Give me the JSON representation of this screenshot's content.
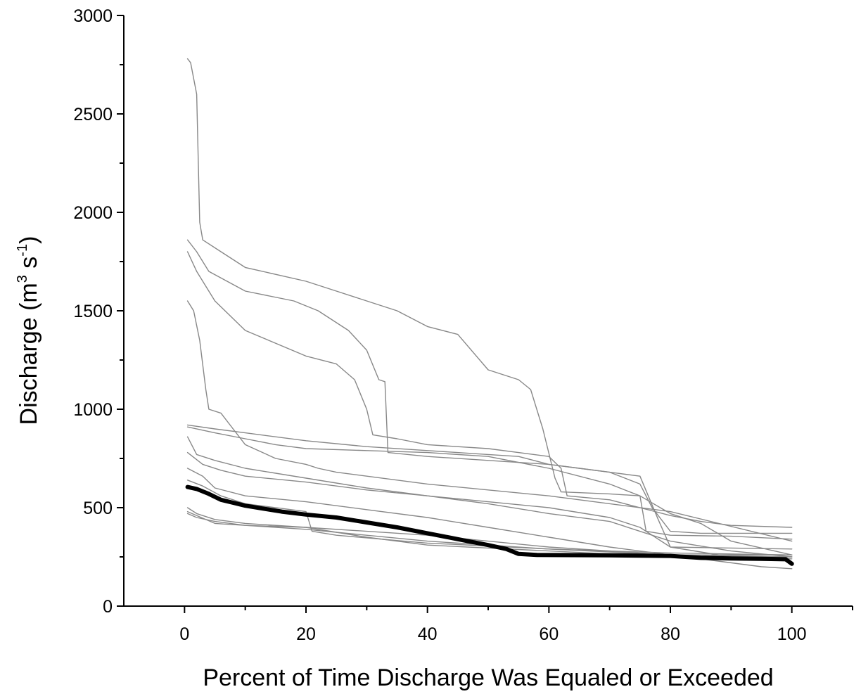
{
  "chart_data": {
    "type": "line",
    "xlabel": "Percent of Time Discharge Was Equaled or Exceeded",
    "ylabel_main": "Discharge (m",
    "ylabel_sup1": "3",
    "ylabel_mid": " s",
    "ylabel_sup2": "-1",
    "ylabel_end": ")",
    "xlim": [
      -10,
      110
    ],
    "ylim": [
      0,
      3000
    ],
    "xticks": [
      0,
      20,
      40,
      60,
      80,
      100
    ],
    "yticks": [
      0,
      500,
      1000,
      1500,
      2000,
      2500,
      3000
    ],
    "xtick_labels": [
      "0",
      "20",
      "40",
      "60",
      "80",
      "100"
    ],
    "ytick_labels": [
      "0",
      "500",
      "1000",
      "1500",
      "2000",
      "2500",
      "3000"
    ],
    "grid": false,
    "colors": {
      "gray": "#888888",
      "black": "#000000"
    },
    "series": [
      {
        "color": "gray",
        "points": [
          [
            0.5,
            2780
          ],
          [
            1,
            2760
          ],
          [
            2,
            2600
          ],
          [
            2.5,
            1950
          ],
          [
            3,
            1860
          ],
          [
            6,
            1800
          ],
          [
            10,
            1720
          ],
          [
            20,
            1650
          ],
          [
            25,
            1600
          ],
          [
            30,
            1550
          ],
          [
            35,
            1500
          ],
          [
            40,
            1420
          ],
          [
            45,
            1380
          ],
          [
            50,
            1200
          ],
          [
            55,
            1150
          ],
          [
            57,
            1100
          ],
          [
            59,
            900
          ],
          [
            61,
            650
          ],
          [
            62,
            580
          ],
          [
            70,
            570
          ],
          [
            75,
            560
          ],
          [
            76,
            380
          ],
          [
            80,
            360
          ],
          [
            90,
            355
          ],
          [
            100,
            340
          ]
        ]
      },
      {
        "color": "gray",
        "points": [
          [
            0.5,
            1860
          ],
          [
            2,
            1800
          ],
          [
            4,
            1700
          ],
          [
            10,
            1600
          ],
          [
            18,
            1550
          ],
          [
            22,
            1500
          ],
          [
            27,
            1400
          ],
          [
            30,
            1300
          ],
          [
            32,
            1150
          ],
          [
            33,
            1140
          ],
          [
            33.5,
            780
          ],
          [
            40,
            760
          ],
          [
            50,
            740
          ],
          [
            60,
            720
          ],
          [
            65,
            700
          ],
          [
            70,
            680
          ],
          [
            75,
            620
          ],
          [
            77,
            500
          ],
          [
            80,
            380
          ],
          [
            85,
            370
          ],
          [
            100,
            370
          ]
        ]
      },
      {
        "color": "gray",
        "points": [
          [
            0.5,
            1800
          ],
          [
            2,
            1700
          ],
          [
            5,
            1550
          ],
          [
            10,
            1400
          ],
          [
            20,
            1270
          ],
          [
            25,
            1230
          ],
          [
            28,
            1150
          ],
          [
            30,
            1000
          ],
          [
            31,
            870
          ],
          [
            35,
            850
          ],
          [
            40,
            820
          ],
          [
            50,
            800
          ],
          [
            60,
            760
          ],
          [
            62,
            700
          ],
          [
            63,
            560
          ],
          [
            70,
            540
          ],
          [
            75,
            500
          ],
          [
            80,
            460
          ],
          [
            85,
            430
          ],
          [
            90,
            410
          ],
          [
            100,
            400
          ]
        ]
      },
      {
        "color": "gray",
        "points": [
          [
            0.5,
            1550
          ],
          [
            1.5,
            1500
          ],
          [
            2.5,
            1350
          ],
          [
            3.5,
            1100
          ],
          [
            4,
            1000
          ],
          [
            6,
            980
          ],
          [
            8,
            900
          ],
          [
            10,
            820
          ],
          [
            15,
            750
          ],
          [
            20,
            720
          ],
          [
            22,
            700
          ],
          [
            25,
            680
          ],
          [
            40,
            620
          ],
          [
            60,
            560
          ],
          [
            80,
            480
          ],
          [
            100,
            330
          ]
        ]
      },
      {
        "color": "gray",
        "points": [
          [
            0.5,
            920
          ],
          [
            5,
            900
          ],
          [
            10,
            880
          ],
          [
            20,
            840
          ],
          [
            30,
            810
          ],
          [
            40,
            790
          ],
          [
            50,
            770
          ],
          [
            55,
            760
          ],
          [
            60,
            720
          ],
          [
            65,
            700
          ],
          [
            70,
            680
          ],
          [
            75,
            660
          ],
          [
            78,
            440
          ],
          [
            80,
            300
          ],
          [
            100,
            290
          ]
        ]
      },
      {
        "color": "gray",
        "points": [
          [
            0.5,
            910
          ],
          [
            5,
            880
          ],
          [
            10,
            850
          ],
          [
            15,
            820
          ],
          [
            20,
            800
          ],
          [
            30,
            790
          ],
          [
            40,
            780
          ],
          [
            50,
            760
          ],
          [
            60,
            700
          ],
          [
            70,
            620
          ],
          [
            75,
            560
          ],
          [
            80,
            470
          ],
          [
            85,
            420
          ],
          [
            90,
            330
          ],
          [
            100,
            260
          ]
        ]
      },
      {
        "color": "gray",
        "points": [
          [
            0.5,
            860
          ],
          [
            2,
            770
          ],
          [
            5,
            740
          ],
          [
            10,
            700
          ],
          [
            20,
            650
          ],
          [
            30,
            600
          ],
          [
            40,
            560
          ],
          [
            50,
            530
          ],
          [
            60,
            500
          ],
          [
            70,
            450
          ],
          [
            75,
            400
          ],
          [
            80,
            300
          ],
          [
            90,
            250
          ],
          [
            100,
            240
          ]
        ]
      },
      {
        "color": "gray",
        "points": [
          [
            0.5,
            780
          ],
          [
            3,
            720
          ],
          [
            6,
            690
          ],
          [
            10,
            660
          ],
          [
            20,
            630
          ],
          [
            30,
            590
          ],
          [
            40,
            560
          ],
          [
            50,
            520
          ],
          [
            60,
            470
          ],
          [
            70,
            430
          ],
          [
            80,
            330
          ],
          [
            90,
            280
          ],
          [
            100,
            250
          ]
        ]
      },
      {
        "color": "gray",
        "points": [
          [
            0.5,
            700
          ],
          [
            3,
            660
          ],
          [
            5,
            600
          ],
          [
            10,
            560
          ],
          [
            20,
            530
          ],
          [
            30,
            490
          ],
          [
            40,
            450
          ],
          [
            50,
            400
          ],
          [
            60,
            350
          ],
          [
            70,
            300
          ],
          [
            80,
            260
          ],
          [
            100,
            250
          ]
        ]
      },
      {
        "color": "gray",
        "points": [
          [
            0.5,
            640
          ],
          [
            3,
            610
          ],
          [
            6,
            560
          ],
          [
            10,
            520
          ],
          [
            20,
            480
          ],
          [
            21,
            380
          ],
          [
            25,
            360
          ],
          [
            40,
            320
          ],
          [
            60,
            290
          ],
          [
            80,
            270
          ],
          [
            100,
            260
          ]
        ]
      },
      {
        "color": "gray",
        "points": [
          [
            0.5,
            500
          ],
          [
            2,
            470
          ],
          [
            5,
            440
          ],
          [
            10,
            420
          ],
          [
            20,
            400
          ],
          [
            40,
            360
          ],
          [
            60,
            300
          ],
          [
            80,
            260
          ],
          [
            95,
            200
          ],
          [
            100,
            190
          ]
        ]
      },
      {
        "color": "gray",
        "points": [
          [
            0.5,
            470
          ],
          [
            2,
            450
          ],
          [
            5,
            430
          ],
          [
            10,
            410
          ],
          [
            20,
            390
          ],
          [
            40,
            330
          ],
          [
            60,
            290
          ],
          [
            80,
            260
          ],
          [
            100,
            260
          ]
        ]
      },
      {
        "color": "gray",
        "points": [
          [
            0.5,
            480
          ],
          [
            5,
            420
          ],
          [
            10,
            410
          ],
          [
            20,
            400
          ],
          [
            30,
            350
          ],
          [
            40,
            310
          ],
          [
            60,
            280
          ],
          [
            80,
            250
          ],
          [
            100,
            250
          ]
        ]
      },
      {
        "color": "black",
        "points": [
          [
            0.5,
            605
          ],
          [
            2,
            595
          ],
          [
            4,
            570
          ],
          [
            6,
            540
          ],
          [
            8,
            525
          ],
          [
            10,
            510
          ],
          [
            13,
            495
          ],
          [
            16,
            480
          ],
          [
            20,
            465
          ],
          [
            25,
            450
          ],
          [
            30,
            425
          ],
          [
            35,
            400
          ],
          [
            40,
            370
          ],
          [
            45,
            340
          ],
          [
            50,
            310
          ],
          [
            53,
            290
          ],
          [
            55,
            265
          ],
          [
            58,
            260
          ],
          [
            70,
            258
          ],
          [
            80,
            255
          ],
          [
            85,
            245
          ],
          [
            90,
            242
          ],
          [
            95,
            240
          ],
          [
            99,
            238
          ],
          [
            100,
            215
          ]
        ]
      }
    ]
  }
}
